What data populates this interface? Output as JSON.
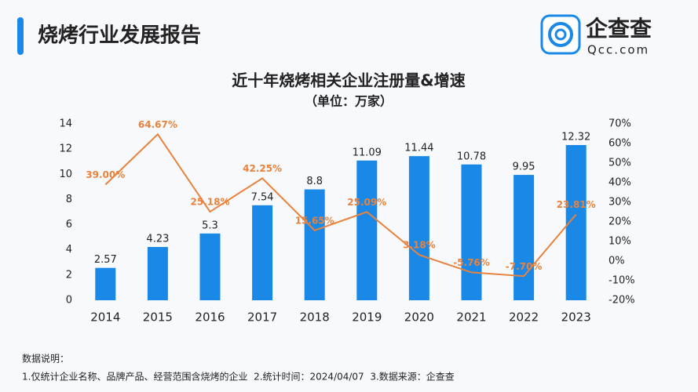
{
  "header": {
    "title": "烧烤行业发展报告",
    "logo": "企查查",
    "logo_sub": "Qcc.com"
  },
  "chart_data": {
    "type": "bar",
    "title": "近十年烧烤相关企业注册量&增速",
    "subtitle": "（单位：万家）",
    "categories": [
      "2014",
      "2015",
      "2016",
      "2017",
      "2018",
      "2019",
      "2020",
      "2021",
      "2022",
      "2023"
    ],
    "series": [
      {
        "name": "注册量",
        "type": "bar",
        "color": "#1a88e6",
        "axis": "y",
        "values": [
          2.57,
          4.23,
          5.3,
          7.54,
          8.8,
          11.09,
          11.44,
          10.78,
          9.95,
          12.32
        ]
      },
      {
        "name": "增速",
        "type": "line",
        "color": "#e8823c",
        "axis": "y2",
        "values": [
          39.0,
          64.67,
          25.18,
          42.25,
          15.65,
          25.09,
          3.18,
          -5.76,
          -7.7,
          23.81
        ],
        "value_labels": [
          "39.00%",
          "64.67%",
          "25.18%",
          "42.25%",
          "15.65%",
          "25.09%",
          "3.18%",
          "-5.76%",
          "-7.70%",
          "23.81%"
        ]
      }
    ],
    "ylim": [
      0,
      14
    ],
    "yticks": [
      0,
      2,
      4,
      6,
      8,
      10,
      12,
      14
    ],
    "y2lim": [
      -20,
      70
    ],
    "y2ticks": [
      {
        "value": -20,
        "label": "-20%"
      },
      {
        "value": -10,
        "label": "-10%"
      },
      {
        "value": 0,
        "label": "0%"
      },
      {
        "value": 10,
        "label": "10%"
      },
      {
        "value": 20,
        "label": "20%"
      },
      {
        "value": 30,
        "label": "30%"
      },
      {
        "value": 40,
        "label": "40%"
      },
      {
        "value": 50,
        "label": "50%"
      },
      {
        "value": 60,
        "label": "60%"
      },
      {
        "value": 70,
        "label": "70%"
      }
    ],
    "grid": false
  },
  "footer": {
    "title": "数据说明：",
    "text": "1.仅统计企业名称、品牌产品、经营范围含烧烤的企业  2.统计时间：2024/04/07  3.数据来源：企查查"
  }
}
